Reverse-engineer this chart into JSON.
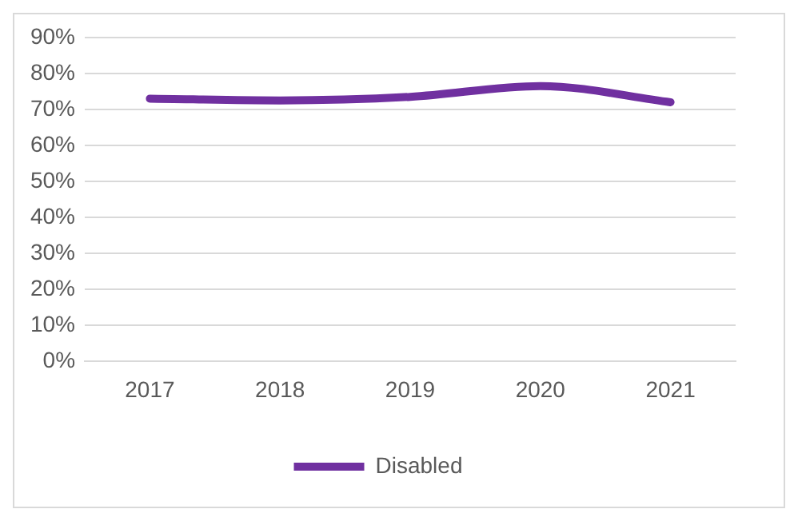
{
  "chart_data": {
    "type": "line",
    "categories": [
      "2017",
      "2018",
      "2019",
      "2020",
      "2021"
    ],
    "series": [
      {
        "name": "Disabled",
        "color": "#7030a0",
        "values": [
          73,
          72.5,
          73.5,
          76.5,
          72
        ]
      }
    ],
    "ylim": [
      0,
      90
    ],
    "yticks": [
      {
        "value": 0,
        "label": "0%"
      },
      {
        "value": 10,
        "label": "10%"
      },
      {
        "value": 20,
        "label": "20%"
      },
      {
        "value": 30,
        "label": "30%"
      },
      {
        "value": 40,
        "label": "40%"
      },
      {
        "value": 50,
        "label": "50%"
      },
      {
        "value": 60,
        "label": "60%"
      },
      {
        "value": 70,
        "label": "70%"
      },
      {
        "value": 80,
        "label": "80%"
      },
      {
        "value": 90,
        "label": "90%"
      }
    ],
    "grid": "y",
    "legend": "bottom",
    "marker": "none",
    "line_style": "solid"
  }
}
